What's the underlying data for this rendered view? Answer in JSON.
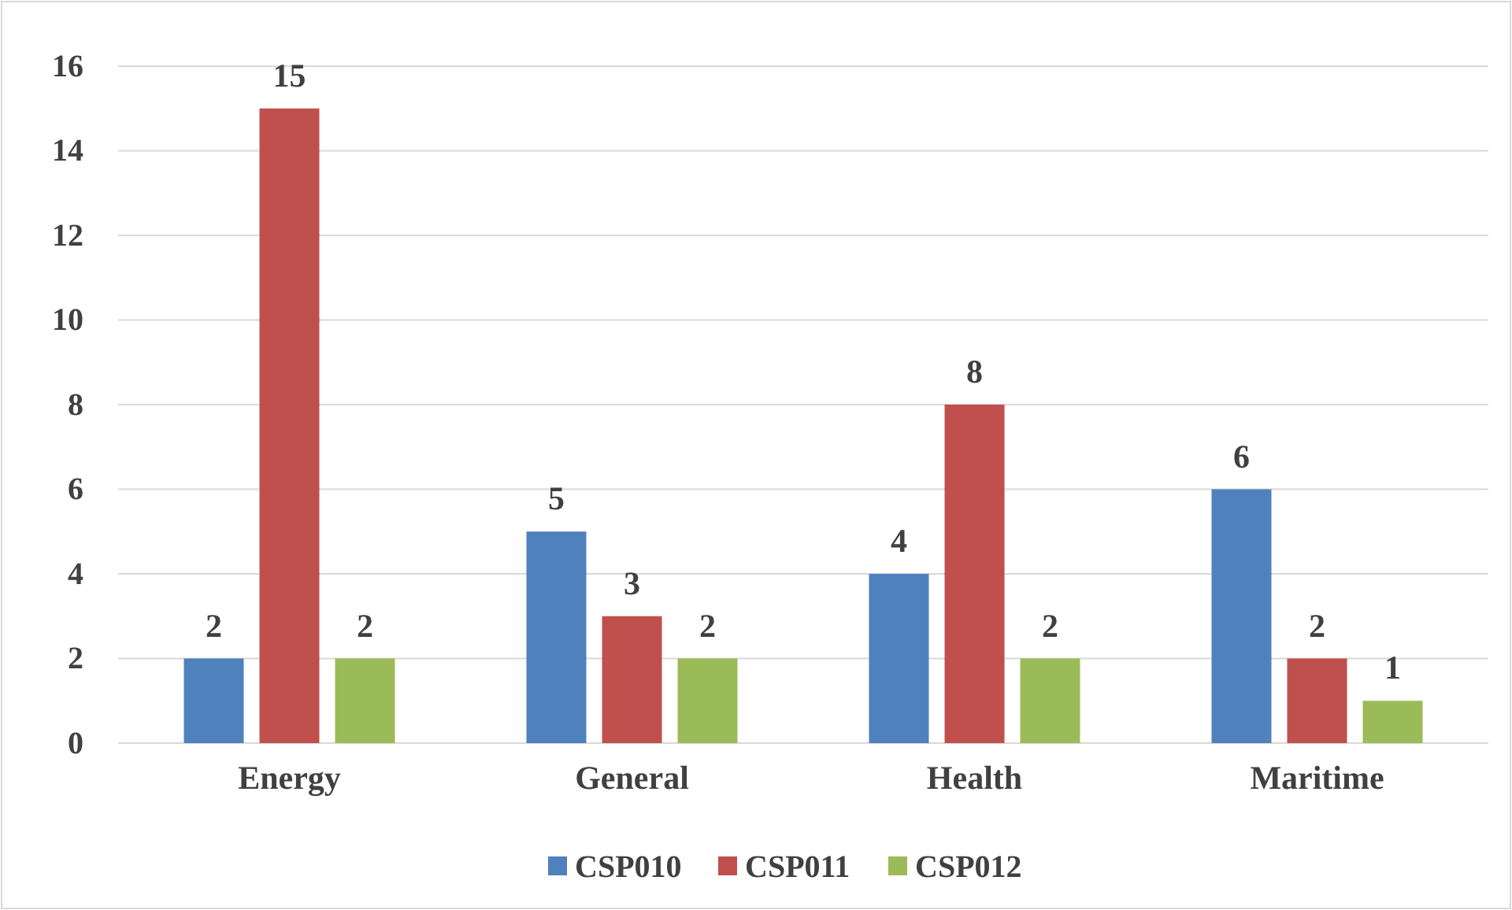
{
  "chart_data": {
    "type": "bar",
    "categories": [
      "Energy",
      "General",
      "Health",
      "Maritime"
    ],
    "series": [
      {
        "name": "CSP010",
        "color": "#4f81bd",
        "values": [
          2,
          5,
          4,
          6
        ]
      },
      {
        "name": "CSP011",
        "color": "#c0504d",
        "values": [
          15,
          3,
          8,
          2
        ]
      },
      {
        "name": "CSP012",
        "color": "#9bbb59",
        "values": [
          2,
          2,
          2,
          1
        ]
      }
    ],
    "ylim": [
      0,
      16
    ],
    "yticks": [
      0,
      2,
      4,
      6,
      8,
      10,
      12,
      14,
      16
    ],
    "grid": "y",
    "legend": "bottom",
    "data_labels": true
  }
}
